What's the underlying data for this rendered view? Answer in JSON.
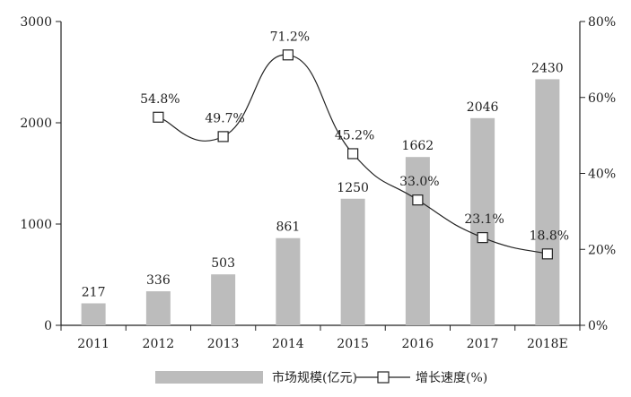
{
  "chart_data": {
    "type": "bar+line",
    "categories": [
      "2011",
      "2012",
      "2013",
      "2014",
      "2015",
      "2016",
      "2017",
      "2018E"
    ],
    "series": [
      {
        "name": "市场规模(亿元)",
        "type": "bar",
        "axis": "left",
        "color": "#bcbcbc",
        "values": [
          217,
          336,
          503,
          861,
          1250,
          1662,
          2046,
          2430
        ],
        "labels": [
          "217",
          "336",
          "503",
          "861",
          "1250",
          "1662",
          "2046",
          "2430"
        ]
      },
      {
        "name": "增长速度(%)",
        "type": "line",
        "axis": "right",
        "color": "#222222",
        "marker": "hollow-square",
        "values": [
          null,
          54.8,
          49.7,
          71.2,
          45.2,
          33.0,
          23.1,
          18.8
        ],
        "labels": [
          "",
          "54.8%",
          "49.7%",
          "71.2%",
          "45.2%",
          "33.0%",
          "23.1%",
          "18.8%"
        ]
      }
    ],
    "y_left": {
      "ylim": [
        0,
        3000
      ],
      "ticks": [
        0,
        1000,
        2000,
        3000
      ],
      "tick_labels": [
        "0",
        "1000",
        "2000",
        "3000"
      ]
    },
    "y_right": {
      "ylim": [
        0,
        80
      ],
      "ticks": [
        0,
        20,
        40,
        60,
        80
      ],
      "tick_labels": [
        "0%",
        "20%",
        "40%",
        "60%",
        "80%"
      ]
    },
    "grid": false,
    "legend": {
      "position": "bottom",
      "items": [
        {
          "label": "市场规模(亿元)",
          "kind": "bar"
        },
        {
          "label": "增长速度(%)",
          "kind": "line"
        }
      ]
    }
  }
}
